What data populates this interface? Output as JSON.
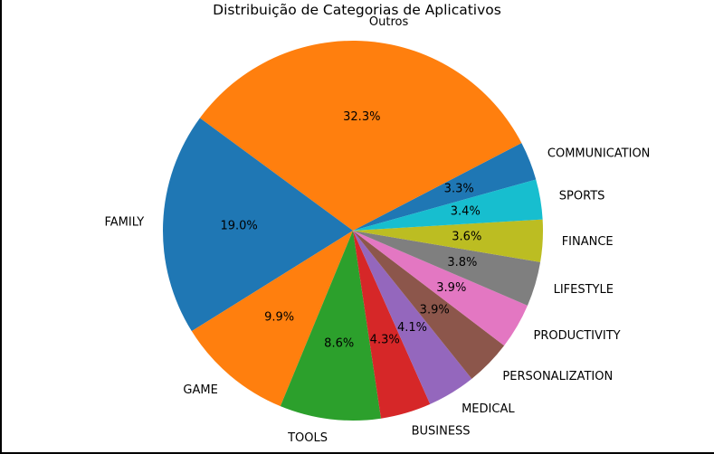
{
  "chart_data": {
    "type": "pie",
    "title": "Distribuição de Categorias de Aplicativos",
    "start_angle_deg": 15.6,
    "direction": "counterclockwise",
    "slices": [
      {
        "label": "COMMUNICATION",
        "value": 3.3,
        "pct_label": "3.3%",
        "color": "#1f77b4"
      },
      {
        "label": "Outros",
        "value": 32.3,
        "pct_label": "32.3%",
        "color": "#ff7f0e"
      },
      {
        "label": "FAMILY",
        "value": 19.0,
        "pct_label": "19.0%",
        "color": "#1f77b4"
      },
      {
        "label": "GAME",
        "value": 9.9,
        "pct_label": "9.9%",
        "color": "#ff7f0e"
      },
      {
        "label": "TOOLS",
        "value": 8.6,
        "pct_label": "8.6%",
        "color": "#2ca02c"
      },
      {
        "label": "BUSINESS",
        "value": 4.3,
        "pct_label": "4.3%",
        "color": "#d62728"
      },
      {
        "label": "MEDICAL",
        "value": 4.1,
        "pct_label": "4.1%",
        "color": "#9467bd"
      },
      {
        "label": "PERSONALIZATION",
        "value": 3.9,
        "pct_label": "3.9%",
        "color": "#8c564b"
      },
      {
        "label": "PRODUCTIVITY",
        "value": 3.9,
        "pct_label": "3.9%",
        "color": "#e377c2"
      },
      {
        "label": "LIFESTYLE",
        "value": 3.8,
        "pct_label": "3.8%",
        "color": "#7f7f7f"
      },
      {
        "label": "FINANCE",
        "value": 3.6,
        "pct_label": "3.6%",
        "color": "#bcbd22"
      },
      {
        "label": "SPORTS",
        "value": 3.4,
        "pct_label": "3.4%",
        "color": "#17becf"
      }
    ]
  }
}
